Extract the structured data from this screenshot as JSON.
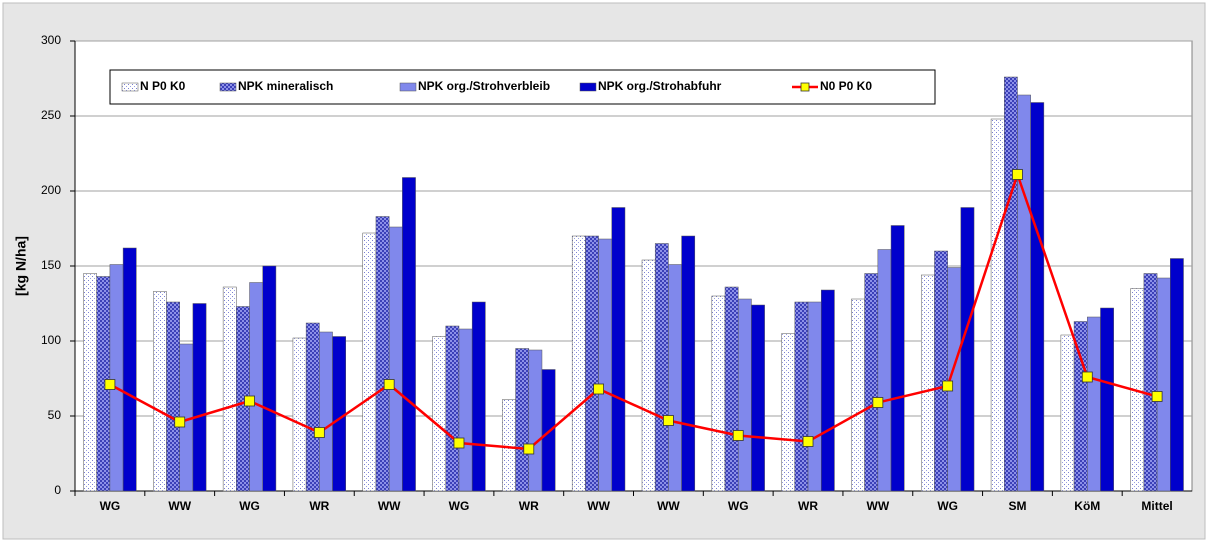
{
  "chart_data": {
    "type": "bar",
    "y_label": "[kg N/ha]",
    "categories": [
      "WG",
      "WW",
      "WG",
      "WR",
      "WW",
      "WG",
      "WR",
      "WW",
      "WW",
      "WG",
      "WR",
      "WW",
      "WG",
      "SM",
      "KöM",
      "Mittel"
    ],
    "ylim": [
      0,
      300
    ],
    "yticks": [
      0,
      50,
      100,
      150,
      200,
      250,
      300
    ],
    "grid": true,
    "series": [
      {
        "name": "N P0 K0",
        "color": "#e4e8f6",
        "pattern": "dots",
        "values": [
          145,
          133,
          136,
          102,
          172,
          103,
          61,
          170,
          154,
          130,
          105,
          128,
          144,
          248,
          104,
          135
        ]
      },
      {
        "name": "NPK mineralisch",
        "color": "#8c90e8",
        "pattern": "checks",
        "values": [
          143,
          126,
          123,
          112,
          183,
          110,
          95,
          170,
          165,
          136,
          126,
          145,
          160,
          276,
          113,
          145
        ]
      },
      {
        "name": "NPK org./Strohverbleib",
        "color": "#8088ec",
        "values": [
          151,
          98,
          139,
          106,
          176,
          108,
          94,
          168,
          151,
          128,
          126,
          161,
          149,
          264,
          116,
          142
        ]
      },
      {
        "name": "NPK org./Strohabfuhr",
        "color": "#0000cc",
        "values": [
          162,
          125,
          150,
          103,
          209,
          126,
          81,
          189,
          170,
          124,
          134,
          177,
          189,
          259,
          122,
          155
        ]
      },
      {
        "name": "N0 P0 K0",
        "type": "line",
        "color": "#ff0000",
        "marker_color": "#ffff00",
        "values": [
          71,
          46,
          60,
          39,
          71,
          32,
          28,
          68,
          47,
          37,
          33,
          59,
          70,
          211,
          76,
          63
        ]
      }
    ]
  }
}
